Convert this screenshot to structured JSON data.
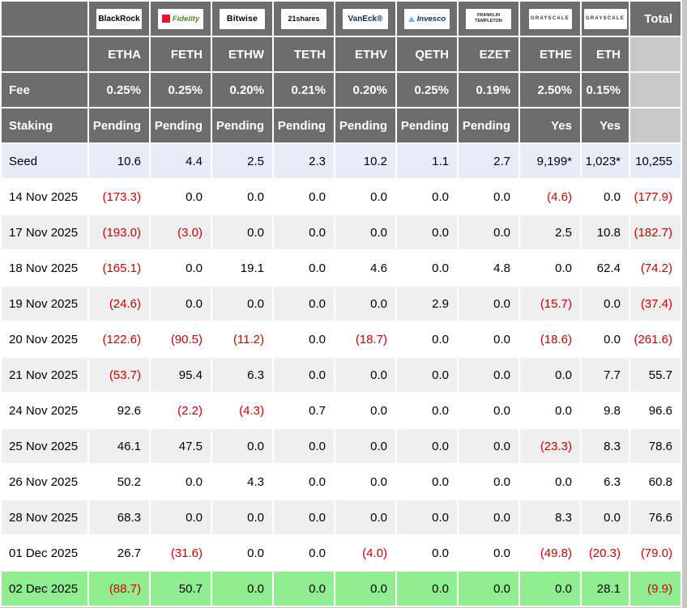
{
  "colors": {
    "header_bg": "#6d6d6d",
    "page_bg": "#c8c8c8",
    "row_alt_bg": "#efefef",
    "seed_row_bg": "#e8ecf8",
    "highlight_row_bg": "#90ee90",
    "negative_text": "#cc0000",
    "header_text": "#ffffff"
  },
  "chart_data": {
    "type": "table",
    "header": {
      "total_label": "Total",
      "fee_label": "Fee",
      "staking_label": "Staking",
      "issuers": [
        {
          "name": "BlackRock",
          "logo_text": "BlackRock",
          "ticker": "ETHA",
          "fee": "0.25%",
          "staking": "Pending"
        },
        {
          "name": "Fidelity",
          "logo_text": "Fidelity",
          "ticker": "FETH",
          "fee": "0.25%",
          "staking": "Pending"
        },
        {
          "name": "Bitwise",
          "logo_text": "Bitwise",
          "ticker": "ETHW",
          "fee": "0.20%",
          "staking": "Pending"
        },
        {
          "name": "21shares",
          "logo_text": "21shares",
          "ticker": "TETH",
          "fee": "0.21%",
          "staking": "Pending"
        },
        {
          "name": "VanEck",
          "logo_text": "VanEck®",
          "ticker": "ETHV",
          "fee": "0.20%",
          "staking": "Pending"
        },
        {
          "name": "Invesco",
          "logo_text": "Invesco",
          "ticker": "QETH",
          "fee": "0.25%",
          "staking": "Pending"
        },
        {
          "name": "Franklin Templeton",
          "logo_text": "FRANKLIN TEMPLETON",
          "ticker": "EZET",
          "fee": "0.19%",
          "staking": "Pending"
        },
        {
          "name": "Grayscale",
          "logo_text": "GRAYSCALE",
          "ticker": "ETHE",
          "fee": "2.50%",
          "staking": "Yes"
        },
        {
          "name": "Grayscale",
          "logo_text": "GRAYSCALE",
          "ticker": "ETH",
          "fee": "0.15%",
          "staking": "Yes"
        }
      ]
    },
    "rows": [
      {
        "label": "Seed",
        "style": "seed",
        "values": [
          "10.6",
          "4.4",
          "2.5",
          "2.3",
          "10.2",
          "1.1",
          "2.7",
          "9,199*",
          "1,023*"
        ],
        "total": "10,255"
      },
      {
        "label": "14 Nov 2025",
        "values": [
          "(173.3)",
          "0.0",
          "0.0",
          "0.0",
          "0.0",
          "0.0",
          "0.0",
          "(4.6)",
          "0.0"
        ],
        "total": "(177.9)"
      },
      {
        "label": "17 Nov 2025",
        "values": [
          "(193.0)",
          "(3.0)",
          "0.0",
          "0.0",
          "0.0",
          "0.0",
          "0.0",
          "2.5",
          "10.8"
        ],
        "total": "(182.7)"
      },
      {
        "label": "18 Nov 2025",
        "values": [
          "(165.1)",
          "0.0",
          "19.1",
          "0.0",
          "4.6",
          "0.0",
          "4.8",
          "0.0",
          "62.4"
        ],
        "total": "(74.2)"
      },
      {
        "label": "19 Nov 2025",
        "values": [
          "(24.6)",
          "0.0",
          "0.0",
          "0.0",
          "0.0",
          "2.9",
          "0.0",
          "(15.7)",
          "0.0"
        ],
        "total": "(37.4)"
      },
      {
        "label": "20 Nov 2025",
        "values": [
          "(122.6)",
          "(90.5)",
          "(11.2)",
          "0.0",
          "(18.7)",
          "0.0",
          "0.0",
          "(18.6)",
          "0.0"
        ],
        "total": "(261.6)"
      },
      {
        "label": "21 Nov 2025",
        "values": [
          "(53.7)",
          "95.4",
          "6.3",
          "0.0",
          "0.0",
          "0.0",
          "0.0",
          "0.0",
          "7.7"
        ],
        "total": "55.7"
      },
      {
        "label": "24 Nov 2025",
        "values": [
          "92.6",
          "(2.2)",
          "(4.3)",
          "0.7",
          "0.0",
          "0.0",
          "0.0",
          "0.0",
          "9.8"
        ],
        "total": "96.6"
      },
      {
        "label": "25 Nov 2025",
        "values": [
          "46.1",
          "47.5",
          "0.0",
          "0.0",
          "0.0",
          "0.0",
          "0.0",
          "(23.3)",
          "8.3"
        ],
        "total": "78.6"
      },
      {
        "label": "26 Nov 2025",
        "values": [
          "50.2",
          "0.0",
          "4.3",
          "0.0",
          "0.0",
          "0.0",
          "0.0",
          "0.0",
          "6.3"
        ],
        "total": "60.8"
      },
      {
        "label": "28 Nov 2025",
        "values": [
          "68.3",
          "0.0",
          "0.0",
          "0.0",
          "0.0",
          "0.0",
          "0.0",
          "8.3",
          "0.0"
        ],
        "total": "76.6"
      },
      {
        "label": "01 Dec 2025",
        "values": [
          "26.7",
          "(31.6)",
          "0.0",
          "0.0",
          "(4.0)",
          "0.0",
          "0.0",
          "(49.8)",
          "(20.3)"
        ],
        "total": "(79.0)"
      },
      {
        "label": "02 Dec 2025",
        "style": "highlight",
        "values": [
          "(88.7)",
          "50.7",
          "0.0",
          "0.0",
          "0.0",
          "0.0",
          "0.0",
          "0.0",
          "28.1"
        ],
        "total": "(9.9)"
      }
    ]
  }
}
